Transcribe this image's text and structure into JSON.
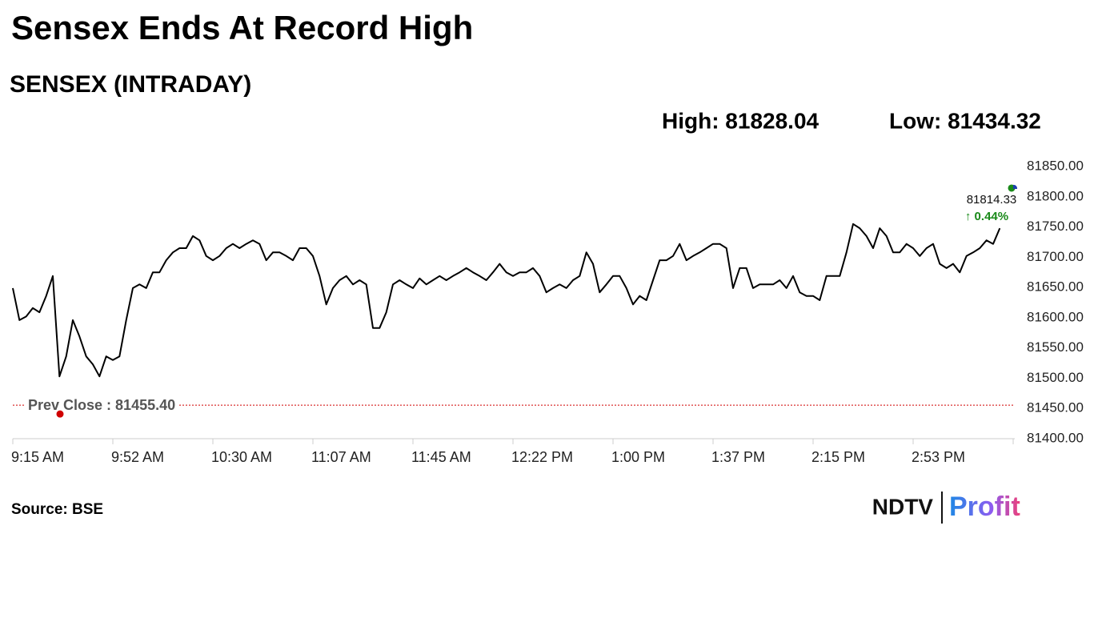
{
  "chart_data": {
    "type": "line",
    "title": "Sensex Ends At Record High",
    "subtitle": "SENSEX (INTRADAY)",
    "high_label": "High: 81828.04",
    "low_label": "Low: 81434.32",
    "source": "Source: BSE",
    "logo": {
      "brand": "NDTV",
      "product": "Profit"
    },
    "categories": [
      "9:15 AM",
      null,
      null,
      null,
      null,
      null,
      null,
      null,
      null,
      null,
      null,
      null,
      null,
      null,
      null,
      "9:52 AM",
      null,
      null,
      null,
      null,
      null,
      null,
      null,
      null,
      null,
      null,
      null,
      null,
      null,
      null,
      "10:30 AM",
      null,
      null,
      null,
      null,
      null,
      null,
      null,
      null,
      null,
      null,
      null,
      null,
      null,
      null,
      "11:07 AM",
      null,
      null,
      null,
      null,
      null,
      null,
      null,
      null,
      null,
      null,
      null,
      null,
      null,
      null,
      "11:45 AM",
      null,
      null,
      null,
      null,
      null,
      null,
      null,
      null,
      null,
      null,
      null,
      null,
      null,
      null,
      "12:22 PM",
      null,
      null,
      null,
      null,
      null,
      null,
      null,
      null,
      null,
      null,
      null,
      null,
      null,
      null,
      "1:00 PM",
      null,
      null,
      null,
      null,
      null,
      null,
      null,
      null,
      null,
      null,
      null,
      null,
      null,
      null,
      "1:37 PM",
      null,
      null,
      null,
      null,
      null,
      null,
      null,
      null,
      null,
      null,
      null,
      null,
      null,
      null,
      "2:15 PM",
      null,
      null,
      null,
      null,
      null,
      null,
      null,
      null,
      null,
      null,
      null,
      null,
      null,
      null,
      "2:53 PM",
      null,
      null,
      null,
      null,
      null,
      null,
      null,
      null,
      null,
      null,
      null,
      null,
      null,
      null,
      null
    ],
    "series": [
      {
        "name": "SENSEX",
        "color": "#000000",
        "values": [
          81649,
          81596,
          81602,
          81616,
          81609,
          81636,
          81669,
          81503,
          81536,
          81596,
          81569,
          81536,
          81523,
          81503,
          81536,
          81530,
          81536,
          81596,
          81649,
          81655,
          81649,
          81675,
          81675,
          81695,
          81708,
          81715,
          81715,
          81735,
          81728,
          81702,
          81695,
          81702,
          81715,
          81722,
          81715,
          81722,
          81728,
          81722,
          81695,
          81708,
          81708,
          81702,
          81695,
          81715,
          81715,
          81702,
          81669,
          81622,
          81649,
          81662,
          81669,
          81655,
          81662,
          81655,
          81583,
          81583,
          81609,
          81655,
          81662,
          81655,
          81649,
          81665,
          81655,
          81662,
          81669,
          81662,
          81669,
          81675,
          81682,
          81675,
          81669,
          81662,
          81675,
          81689,
          81675,
          81669,
          81675,
          81675,
          81682,
          81669,
          81642,
          81649,
          81655,
          81649,
          81662,
          81669,
          81708,
          81689,
          81642,
          81655,
          81669,
          81669,
          81649,
          81622,
          81636,
          81629,
          81662,
          81695,
          81695,
          81702,
          81722,
          81695,
          81702,
          81708,
          81715,
          81722,
          81722,
          81715,
          81649,
          81682,
          81682,
          81649,
          81655,
          81655,
          81655,
          81662,
          81649,
          81669,
          81642,
          81636,
          81636,
          81629,
          81669,
          81669,
          81669,
          81708,
          81755,
          81748,
          81735,
          81715,
          81748,
          81735,
          81708,
          81708,
          81722,
          81715,
          81702,
          81715,
          81722,
          81689,
          81682,
          81689,
          81675,
          81702,
          81708,
          81715,
          81728,
          81722,
          81748,
          null,
          null
        ]
      }
    ],
    "prev_close": 81455.4,
    "prev_close_label": "Prev Close : 81455.40",
    "prev_close_color": "#d00000",
    "last_value": 81814.33,
    "last_value_label": "81814.33",
    "change_label": "↑ 0.44%",
    "change_color": "#1a8a1a",
    "ylim": [
      81400,
      81850
    ],
    "yticks": [
      {
        "value": 81400,
        "label": "81400.00"
      },
      {
        "value": 81450,
        "label": "81450.00"
      },
      {
        "value": 81500,
        "label": "81500.00"
      },
      {
        "value": 81550,
        "label": "81550.00"
      },
      {
        "value": 81600,
        "label": "81600.00"
      },
      {
        "value": 81650,
        "label": "81650.00"
      },
      {
        "value": 81700,
        "label": "81700.00"
      },
      {
        "value": 81750,
        "label": "81750.00"
      },
      {
        "value": 81800,
        "label": "81800.00"
      },
      {
        "value": 81850,
        "label": "81850.00"
      }
    ],
    "grid": false
  }
}
